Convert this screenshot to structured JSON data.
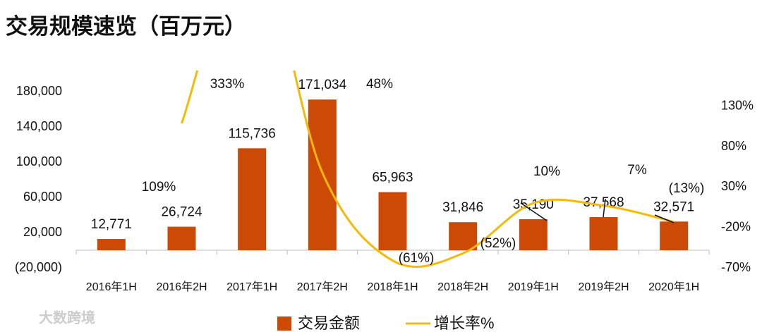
{
  "chart_data": {
    "type": "bar-line",
    "title": "交易规模速览（百万元）",
    "watermark": "大数跨境",
    "categories": [
      "2016年1H",
      "2016年2H",
      "2017年1H",
      "2017年2H",
      "2018年1H",
      "2018年2H",
      "2019年1H",
      "2019年2H",
      "2020年1H"
    ],
    "ylim": [
      -20000,
      200000
    ],
    "yticks": [
      {
        "value": -20000,
        "label": "(20,000)"
      },
      {
        "value": 20000,
        "label": "20,000"
      },
      {
        "value": 60000,
        "label": "60,000"
      },
      {
        "value": 100000,
        "label": "100,000"
      },
      {
        "value": 140000,
        "label": "140,000"
      },
      {
        "value": 180000,
        "label": "180,000"
      }
    ],
    "y2lim": [
      -70,
      170
    ],
    "y2ticks": [
      {
        "value": -70,
        "label": "-70%"
      },
      {
        "value": -20,
        "label": "-20%"
      },
      {
        "value": 30,
        "label": "30%"
      },
      {
        "value": 80,
        "label": "80%"
      },
      {
        "value": 130,
        "label": "130%"
      }
    ],
    "series": [
      {
        "name": "交易金额",
        "type": "bar",
        "color": "#cc4a06",
        "values": [
          12771,
          26724,
          115736,
          171034,
          65963,
          31846,
          35190,
          37568,
          32571
        ],
        "value_labels": [
          "12,771",
          "26,724",
          "115,736",
          "171,034",
          "65,963",
          "31,846",
          "35,190",
          "37,568",
          "32,571"
        ]
      },
      {
        "name": "增长率%",
        "type": "line",
        "axis": "y2",
        "color": "#f5b90a",
        "values": [
          null,
          109,
          333,
          48,
          -61,
          -52,
          10,
          7,
          -13
        ],
        "value_labels": [
          null,
          "109%",
          "333%",
          "48%",
          "(61%)",
          "(52%)",
          "10%",
          "7%",
          "(13%)"
        ]
      }
    ],
    "legend": "bottom"
  }
}
